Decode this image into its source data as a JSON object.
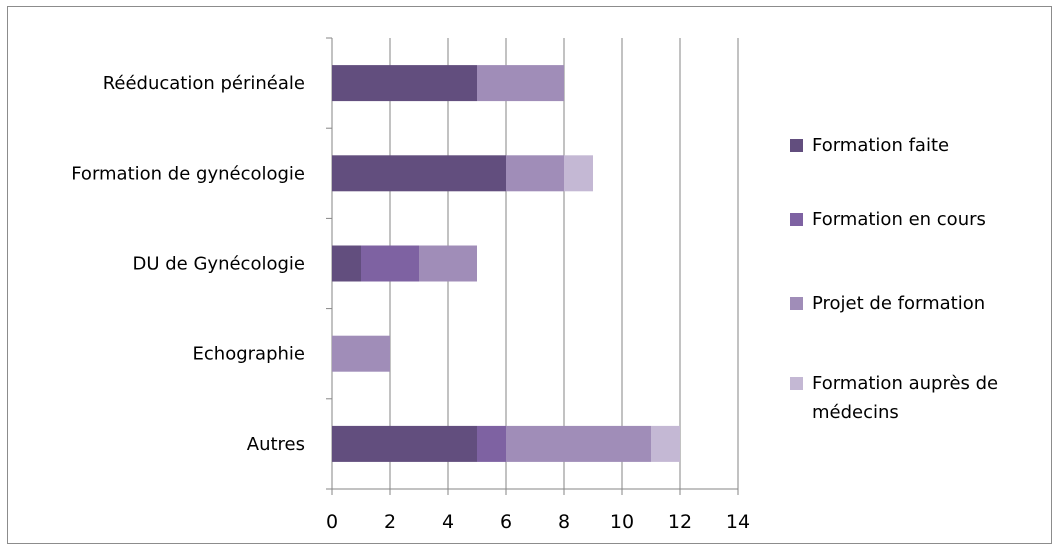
{
  "chart_data": {
    "type": "bar",
    "orientation": "horizontal",
    "stacked": true,
    "categories": [
      "Rééducation périnéale",
      "Formation de gynécologie",
      "DU de Gynécologie",
      "Echographie",
      "Autres"
    ],
    "series": [
      {
        "name": "Formation faite",
        "color": "#624e7e",
        "values": [
          5,
          6,
          1,
          0,
          5
        ]
      },
      {
        "name": "Formation en cours",
        "color": "#7e62a2",
        "values": [
          0,
          0,
          2,
          0,
          1
        ]
      },
      {
        "name": "Projet de formation",
        "color": "#a08db8",
        "values": [
          3,
          2,
          2,
          2,
          5
        ]
      },
      {
        "name": "Formation auprès de médecins",
        "color": "#c4b8d4",
        "values": [
          0,
          1,
          0,
          0,
          1
        ]
      }
    ],
    "xlim": [
      0,
      14
    ],
    "xticks": [
      "0",
      "2",
      "4",
      "6",
      "8",
      "10",
      "12",
      "14"
    ],
    "grid": true,
    "legend_position": "right",
    "title": "",
    "xlabel": "",
    "ylabel": ""
  }
}
